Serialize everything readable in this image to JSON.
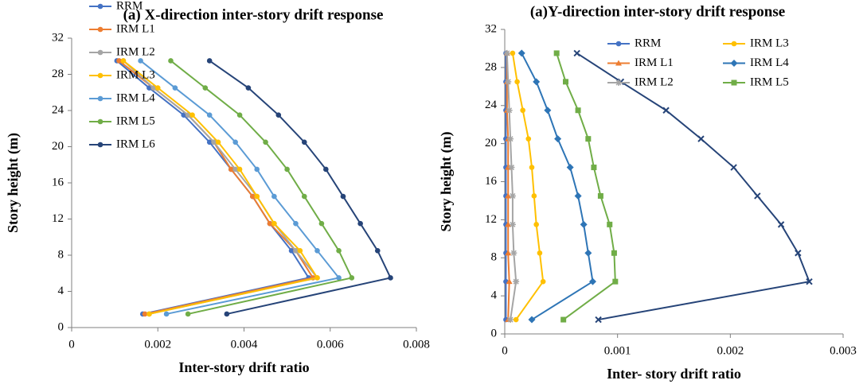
{
  "chart_data": [
    {
      "type": "line",
      "title": "(a) X-direction inter-story drift response",
      "x_label": "Inter-story drift ratio",
      "y_label": "Story height (m)",
      "y": [
        1.5,
        5.5,
        8.5,
        11.5,
        14.5,
        17.5,
        20.5,
        23.5,
        26.5,
        29.5
      ],
      "xlim": [
        0,
        0.008
      ],
      "xticks": [
        0,
        0.002,
        0.004,
        0.006,
        0.008
      ],
      "ylim": [
        0,
        32
      ],
      "yticks": [
        0,
        4,
        8,
        12,
        16,
        20,
        24,
        28,
        32
      ],
      "grid": false,
      "legend": "lower-left",
      "legend_columns": 1,
      "series": [
        {
          "name": "RRM",
          "color": "#4472c4",
          "marker": "circle",
          "values": [
            0.00165,
            0.0055,
            0.0051,
            0.0046,
            0.0042,
            0.0037,
            0.0032,
            0.0026,
            0.0018,
            0.00105
          ]
        },
        {
          "name": "IRM L1",
          "color": "#ed7d31",
          "marker": "circle",
          "values": [
            0.0017,
            0.0056,
            0.0052,
            0.0046,
            0.0042,
            0.0037,
            0.0033,
            0.0027,
            0.0019,
            0.0011
          ]
        },
        {
          "name": "IRM L2",
          "color": "#a5a5a5",
          "marker": "circle",
          "values": [
            0.0018,
            0.0057,
            0.0052,
            0.0047,
            0.0043,
            0.0038,
            0.0033,
            0.0027,
            0.0019,
            0.0012
          ]
        },
        {
          "name": "IRM L3",
          "color": "#ffc000",
          "marker": "circle",
          "values": [
            0.0018,
            0.0057,
            0.0053,
            0.0047,
            0.0043,
            0.0039,
            0.0034,
            0.0028,
            0.002,
            0.0012
          ]
        },
        {
          "name": "IRM L4",
          "color": "#5b9bd5",
          "marker": "circle",
          "values": [
            0.0022,
            0.0062,
            0.0057,
            0.0052,
            0.0047,
            0.0043,
            0.0038,
            0.0032,
            0.0024,
            0.0016
          ]
        },
        {
          "name": "IRM L5",
          "color": "#70ad47",
          "marker": "circle",
          "values": [
            0.0027,
            0.0065,
            0.0062,
            0.0058,
            0.0054,
            0.005,
            0.0045,
            0.0039,
            0.0031,
            0.0023
          ]
        },
        {
          "name": "IRM L6",
          "color": "#264478",
          "marker": "circle",
          "values": [
            0.0036,
            0.0074,
            0.0071,
            0.0067,
            0.0063,
            0.0059,
            0.0054,
            0.0048,
            0.0041,
            0.0032
          ]
        }
      ]
    },
    {
      "type": "line",
      "title": "(a)Y-direction  inter-story  drift  response",
      "x_label": "Inter- story drift ratio",
      "y_label": "Story height (m)",
      "y": [
        1.5,
        5.5,
        8.5,
        11.5,
        14.5,
        17.5,
        20.5,
        23.5,
        26.5,
        29.5
      ],
      "xlim": [
        0,
        0.003
      ],
      "xticks": [
        0,
        0.001,
        0.002,
        0.003
      ],
      "ylim": [
        0,
        32
      ],
      "yticks": [
        0,
        4,
        8,
        12,
        16,
        20,
        24,
        28,
        32
      ],
      "grid": false,
      "legend": "upper-right",
      "legend_columns": 2,
      "series": [
        {
          "name": "RRM",
          "color": "#4472c4",
          "marker": "circle",
          "values": [
            1e-05,
            1e-05,
            1e-05,
            1e-05,
            1e-05,
            1e-05,
            1e-05,
            1e-05,
            1e-05,
            1e-05
          ]
        },
        {
          "name": "IRM L1",
          "color": "#ed7d31",
          "marker": "triangle",
          "values": [
            3e-05,
            4e-05,
            3e-05,
            3e-05,
            3e-05,
            3e-05,
            3e-05,
            2e-05,
            2e-05,
            2e-05
          ]
        },
        {
          "name": "IRM L2",
          "color": "#a5a5a5",
          "marker": "star",
          "values": [
            5e-05,
            0.0001,
            8e-05,
            7e-05,
            7e-05,
            6e-05,
            5e-05,
            4e-05,
            3e-05,
            2e-05
          ]
        },
        {
          "name": "IRM L3",
          "color": "#ffc000",
          "marker": "circle",
          "values": [
            0.0001,
            0.00034,
            0.00031,
            0.00028,
            0.00026,
            0.00024,
            0.00021,
            0.00016,
            0.00011,
            7e-05
          ]
        },
        {
          "name": "IRM L4",
          "color": "#2e75b6",
          "marker": "diamond",
          "values": [
            0.00024,
            0.00078,
            0.00074,
            0.0007,
            0.00065,
            0.00058,
            0.00047,
            0.00038,
            0.00028,
            0.00015
          ]
        },
        {
          "name": "IRM L5",
          "color": "#70ad47",
          "marker": "square",
          "values": [
            0.00052,
            0.00098,
            0.00097,
            0.00093,
            0.00085,
            0.00079,
            0.00074,
            0.00065,
            0.00054,
            0.00046
          ]
        },
        {
          "color": "#264478",
          "marker": "cross",
          "values": [
            0.00083,
            0.0027,
            0.0026,
            0.00245,
            0.00224,
            0.00203,
            0.00174,
            0.00143,
            0.00103,
            0.00064
          ]
        }
      ]
    }
  ]
}
